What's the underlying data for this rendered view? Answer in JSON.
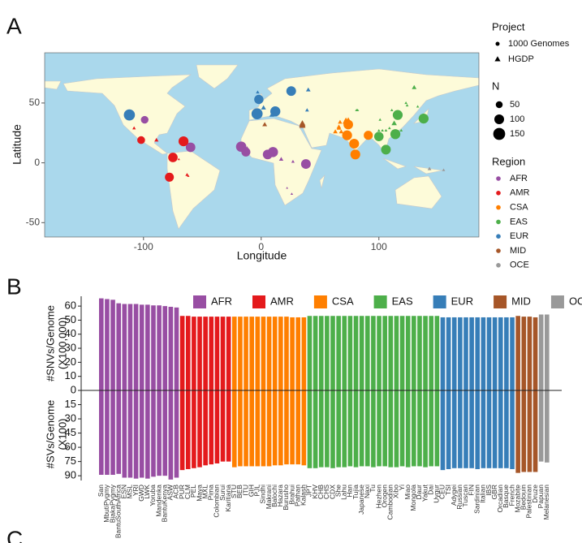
{
  "panel_labels": [
    "A",
    "B",
    "C"
  ],
  "chart_data": [
    {
      "type": "scatter",
      "xlabel": "Longitude",
      "ylabel": "Latitude",
      "xlim": [
        -184,
        185
      ],
      "ylim": [
        -62,
        92
      ],
      "xticks": [
        -100,
        0,
        100
      ],
      "yticks": [
        -50,
        0,
        50
      ],
      "shape_title": "Project",
      "shape_legend": [
        "1000 Genomes",
        "HGDP"
      ],
      "size_title": "N",
      "size_legend": [
        50,
        100,
        150
      ],
      "color_title": "Region",
      "series": [
        {
          "name": "AFR",
          "color": "#984ea3",
          "x": [
            -99,
            -60,
            -17,
            -13,
            5.5,
            10,
            38,
            -12,
            5,
            17,
            27,
            37,
            22,
            26
          ],
          "y": [
            36,
            13,
            13.5,
            9,
            7,
            9,
            -1,
            12,
            8,
            3,
            1,
            -3,
            -21,
            -26
          ],
          "n": [
            61,
            96,
            113,
            85,
            99,
            108,
            99,
            22,
            21,
            22,
            13,
            11,
            6,
            8
          ],
          "project": [
            "1000 Genomes",
            "1000 Genomes",
            "1000 Genomes",
            "1000 Genomes",
            "1000 Genomes",
            "1000 Genomes",
            "1000 Genomes",
            "HGDP",
            "HGDP",
            "HGDP",
            "HGDP",
            "HGDP",
            "HGDP",
            "HGDP"
          ]
        },
        {
          "name": "AMR",
          "color": "#e41a1c",
          "x": [
            -102,
            -66,
            -75,
            -78,
            -108,
            -89,
            -70,
            -63,
            -62
          ],
          "y": [
            19,
            18,
            4.5,
            -12,
            29,
            19,
            3,
            -10,
            -11
          ],
          "n": [
            64,
            104,
            94,
            85,
            14,
            21,
            7,
            14,
            8
          ],
          "project": [
            "1000 Genomes",
            "1000 Genomes",
            "1000 Genomes",
            "1000 Genomes",
            "HGDP",
            "HGDP",
            "HGDP",
            "HGDP",
            "HGDP"
          ]
        },
        {
          "name": "CSA",
          "color": "#ff7f00",
          "x": [
            74,
            73,
            79,
            80,
            91,
            68,
            63,
            66,
            66,
            67,
            74,
            71,
            72
          ],
          "y": [
            32,
            23,
            16,
            7,
            23,
            26,
            26,
            29,
            30,
            34,
            36,
            34,
            36
          ],
          "n": [
            96,
            103,
            102,
            102,
            86,
            24,
            25,
            24,
            25,
            22,
            25,
            22,
            22
          ],
          "project": [
            "1000 Genomes",
            "1000 Genomes",
            "1000 Genomes",
            "1000 Genomes",
            "1000 Genomes",
            "HGDP",
            "HGDP",
            "HGDP",
            "HGDP",
            "HGDP",
            "HGDP",
            "HGDP",
            "HGDP"
          ]
        },
        {
          "name": "EAS",
          "color": "#4daf4a",
          "x": [
            138,
            106,
            100,
            114,
            116,
            138,
            113,
            109,
            119,
            100,
            101,
            100,
            103,
            133,
            123,
            82,
            106,
            111,
            124,
            130,
            100,
            81,
            105
          ],
          "y": [
            37,
            11,
            22,
            24,
            40,
            36,
            33,
            29,
            27,
            22,
            36,
            27,
            27,
            47,
            50,
            44,
            27,
            44,
            48,
            63,
            22,
            44,
            12
          ],
          "n": [
            104,
            99,
            93,
            105,
            103,
            29,
            34,
            10,
            10,
            10,
            10,
            9,
            10,
            9,
            10,
            9,
            10,
            10,
            10,
            25,
            10,
            10,
            11
          ],
          "project": [
            "1000 Genomes",
            "1000 Genomes",
            "1000 Genomes",
            "1000 Genomes",
            "1000 Genomes",
            "HGDP",
            "HGDP",
            "HGDP",
            "HGDP",
            "HGDP",
            "HGDP",
            "HGDP",
            "HGDP",
            "HGDP",
            "HGDP",
            "HGDP",
            "HGDP",
            "HGDP",
            "HGDP",
            "HGDP",
            "HGDP",
            "HGDP",
            "HGDP"
          ]
        },
        {
          "name": "EUR",
          "color": "#377eb8",
          "x": [
            -112,
            -3.5,
            -2,
            12,
            25.5,
            2,
            -2,
            9,
            11,
            11,
            -3,
            39,
            40
          ],
          "y": [
            40,
            41,
            53,
            43,
            60,
            46,
            43,
            40,
            46,
            43,
            59,
            44,
            61
          ],
          "n": [
            130,
            130,
            91,
            107,
            99,
            28,
            24,
            28,
            12,
            8,
            15,
            17,
            25
          ],
          "project": [
            "1000 Genomes",
            "1000 Genomes",
            "1000 Genomes",
            "1000 Genomes",
            "1000 Genomes",
            "HGDP",
            "HGDP",
            "HGDP",
            "HGDP",
            "HGDP",
            "HGDP",
            "HGDP",
            "HGDP"
          ]
        },
        {
          "name": "MID",
          "color": "#a65628",
          "x": [
            3,
            35,
            35,
            35
          ],
          "y": [
            32,
            31,
            32,
            33
          ],
          "n": [
            27,
            46,
            46,
            42
          ],
          "project": [
            "HGDP",
            "HGDP",
            "HGDP",
            "HGDP"
          ]
        },
        {
          "name": "OCE",
          "color": "#999999",
          "x": [
            143,
            155
          ],
          "y": [
            -5,
            -6
          ],
          "n": [
            17,
            11
          ],
          "project": [
            "HGDP",
            "HGDP"
          ]
        }
      ]
    },
    {
      "type": "mirrored_bar",
      "ylabel": [
        "#SNVs/Genome",
        "(X100,000)"
      ],
      "y2label": [
        "#SVs/Genome",
        "(X100)"
      ],
      "ylim": [
        0,
        67
      ],
      "yticks": [
        0,
        10,
        20,
        30,
        40,
        50,
        60
      ],
      "y2lim": [
        0,
        95
      ],
      "y2ticks": [
        15,
        30,
        45,
        60,
        75,
        90
      ],
      "series": [
        {
          "name": "AFR",
          "color": "#984ea3",
          "categories": [
            "San",
            "MbutiPygmy",
            "BiakaPygmy",
            "BantuSouthAfrica",
            "ESN",
            "MSL",
            "YRI",
            "GWD",
            "LWK",
            "Yoruba",
            "Mandenka",
            "BantuKenya",
            "ASW",
            "ACB"
          ],
          "values": [
            65.5,
            65,
            64.5,
            62,
            61.5,
            61.5,
            61.5,
            61,
            61,
            60.5,
            60.5,
            60,
            59.5,
            59
          ],
          "values2": [
            89,
            89,
            89,
            88,
            92,
            92,
            93,
            92,
            93,
            91,
            90,
            90,
            94,
            92
          ]
        },
        {
          "name": "AMR",
          "color": "#e41a1c",
          "categories": [
            "PUR",
            "CLM",
            "PEL",
            "Maya",
            "MXL",
            "Pima",
            "Colombian",
            "Surui",
            "Karitiana"
          ],
          "values": [
            53,
            53,
            52.5,
            52.5,
            52.5,
            52.5,
            52.5,
            52.5,
            52.5
          ],
          "values2": [
            84,
            83,
            82,
            81,
            79,
            78,
            77,
            75,
            75
          ]
        },
        {
          "name": "CSA",
          "color": "#ff7f00",
          "categories": [
            "STU",
            "BEB",
            "ITU",
            "GIH",
            "PJL",
            "Sindhi",
            "Makrani",
            "Balochi",
            "Hazara",
            "Burusho",
            "Brahui",
            "Pathan",
            "Kalash"
          ],
          "values": [
            52.5,
            52.5,
            52.5,
            52.5,
            52.5,
            52.5,
            52.5,
            52.5,
            52.5,
            52.5,
            52,
            52,
            52
          ],
          "values2": [
            81,
            80,
            80,
            80,
            80,
            80,
            80,
            79,
            79,
            78,
            78,
            78,
            79
          ]
        },
        {
          "name": "EAS",
          "color": "#4daf4a",
          "categories": [
            "JPT",
            "KHV",
            "CHB",
            "CHS",
            "CDX",
            "She",
            "Lahu",
            "Han",
            "Tujia",
            "Japanese",
            "Naxi",
            "Tu",
            "Hezhen",
            "Oroqen",
            "Cambodian",
            "Xibo",
            "Yi",
            "Miao",
            "Mongola",
            "Daur",
            "Yakut",
            "Dai",
            "Uygur"
          ],
          "values": [
            53,
            53,
            53,
            53,
            53,
            53,
            53,
            53,
            53,
            53,
            53,
            53,
            53,
            53,
            53,
            53,
            53,
            53,
            53,
            53,
            53,
            53,
            53
          ],
          "values2": [
            82,
            82,
            81,
            81,
            82,
            81,
            81,
            80,
            81,
            80,
            80,
            81,
            80,
            80,
            81,
            81,
            80,
            81,
            80,
            80,
            81,
            80,
            80
          ]
        },
        {
          "name": "EUR",
          "color": "#377eb8",
          "categories": [
            "CEU",
            "TSI",
            "Adygei",
            "Russian",
            "Tuscan",
            "FIN",
            "Sardinian",
            "Italian",
            "IBS",
            "GBR",
            "Orcadian",
            "Basque",
            "French"
          ],
          "values": [
            52,
            52,
            52,
            52,
            52,
            52,
            52,
            52,
            52,
            52,
            52,
            52,
            52
          ],
          "values2": [
            84,
            83,
            82,
            82,
            82,
            82,
            83,
            82,
            82,
            82,
            82,
            82,
            83
          ]
        },
        {
          "name": "MID",
          "color": "#a65628",
          "categories": [
            "Mozabite",
            "Bedouin",
            "Palestinian",
            "Druze"
          ],
          "values": [
            53,
            52.5,
            52.5,
            52
          ],
          "values2": [
            87,
            86,
            86,
            86
          ]
        },
        {
          "name": "OCE",
          "color": "#999999",
          "categories": [
            "Papuan",
            "Melanesian"
          ],
          "values": [
            54,
            54
          ],
          "values2": [
            75,
            76
          ]
        }
      ]
    }
  ]
}
